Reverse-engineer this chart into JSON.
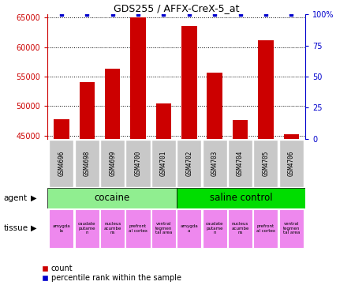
{
  "title": "GDS255 / AFFX-CreX-5_at",
  "samples": [
    "GSM4696",
    "GSM4698",
    "GSM4699",
    "GSM4700",
    "GSM4701",
    "GSM4702",
    "GSM4703",
    "GSM4704",
    "GSM4705",
    "GSM4706"
  ],
  "counts": [
    47800,
    54000,
    56300,
    65000,
    50500,
    63500,
    55700,
    47600,
    61200,
    45200
  ],
  "percentiles": [
    100,
    100,
    100,
    100,
    100,
    100,
    100,
    100,
    100,
    100
  ],
  "ylim_left": [
    44500,
    65500
  ],
  "ylim_right": [
    0,
    100
  ],
  "yticks_left": [
    45000,
    50000,
    55000,
    60000,
    65000
  ],
  "yticks_right": [
    0,
    25,
    50,
    75,
    100
  ],
  "bar_color": "#cc0000",
  "percentile_color": "#0000cc",
  "agent_cocaine_color": "#90ee90",
  "agent_saline_color": "#00dd00",
  "tissue_color": "#ee88ee",
  "tissue_labels_cocaine": [
    "amygda\nla",
    "caudate\nputame\nn",
    "nucleus\nacumbe\nns",
    "prefront\nal cortex",
    "ventral\ntegmen\ntal area"
  ],
  "tissue_labels_saline": [
    "amygda\na",
    "caudate\nputame\nn",
    "nucleus\nacumbe\nns",
    "prefront\nal cortex",
    "ventral\ntegmen\ntal area"
  ],
  "agent_cocaine_label": "cocaine",
  "agent_saline_label": "saline control",
  "legend_count_label": "count",
  "legend_percentile_label": "percentile rank within the sample",
  "row_agent_label": "agent",
  "row_tissue_label": "tissue",
  "left_color": "#cc0000",
  "right_color": "#0000cc",
  "xticklabel_bg": "#c8c8c8"
}
